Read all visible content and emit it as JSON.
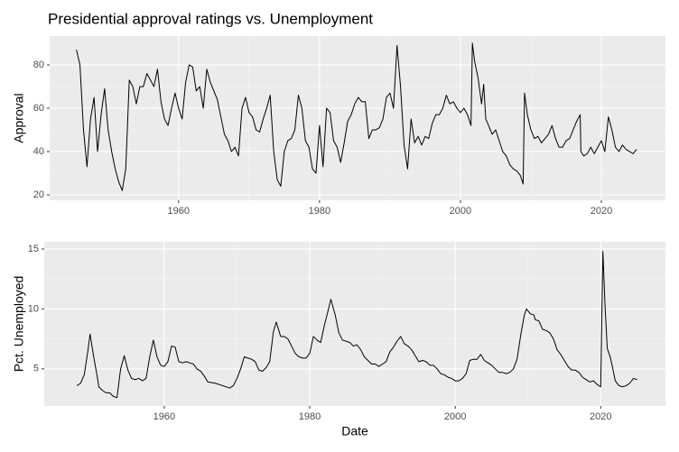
{
  "chart_data": [
    {
      "type": "line",
      "title": "Presidential approval ratings vs. Unemployment",
      "ylabel": "Approval",
      "color": "#000000",
      "grid": true,
      "x": [
        1945.5,
        1946,
        1946.5,
        1947,
        1947.5,
        1948,
        1948.5,
        1949,
        1949.5,
        1950,
        1950.5,
        1951,
        1951.5,
        1952,
        1952.5,
        1953,
        1953.5,
        1954,
        1954.5,
        1955,
        1955.5,
        1956,
        1956.5,
        1957,
        1957.5,
        1958,
        1958.5,
        1959,
        1959.5,
        1960,
        1960.5,
        1961,
        1961.5,
        1962,
        1962.5,
        1963,
        1963.5,
        1964,
        1964.5,
        1965,
        1965.5,
        1966,
        1966.5,
        1967,
        1967.5,
        1968,
        1968.5,
        1969,
        1969.5,
        1970,
        1970.5,
        1971,
        1971.5,
        1972,
        1972.5,
        1973,
        1973.5,
        1974,
        1974.5,
        1975,
        1975.5,
        1976,
        1976.5,
        1977,
        1977.5,
        1978,
        1978.5,
        1979,
        1979.5,
        1980,
        1980.5,
        1981,
        1981.5,
        1982,
        1982.5,
        1983,
        1983.5,
        1984,
        1984.5,
        1985,
        1985.5,
        1986,
        1986.5,
        1987,
        1987.5,
        1988,
        1988.5,
        1989,
        1989.5,
        1990,
        1990.5,
        1991,
        1991.5,
        1992,
        1992.5,
        1993,
        1993.5,
        1994,
        1994.5,
        1995,
        1995.5,
        1996,
        1996.5,
        1997,
        1997.5,
        1998,
        1998.5,
        1999,
        1999.5,
        2000,
        2000.5,
        2001,
        2001.5,
        2001.7,
        2002,
        2002.5,
        2003,
        2003.3,
        2003.6,
        2004,
        2004.5,
        2005,
        2005.5,
        2006,
        2006.5,
        2007,
        2007.5,
        2008,
        2008.5,
        2008.9,
        2009.1,
        2009.5,
        2010,
        2010.5,
        2011,
        2011.5,
        2012,
        2012.5,
        2013,
        2013.5,
        2014,
        2014.5,
        2015,
        2015.5,
        2016,
        2016.5,
        2017,
        2017.1,
        2017.5,
        2018,
        2018.5,
        2019,
        2019.5,
        2020,
        2020.5,
        2021,
        2021.5,
        2022,
        2022.5,
        2023,
        2023.5,
        2024,
        2024.5,
        2025
      ],
      "values": [
        87,
        80,
        50,
        33,
        55,
        65,
        40,
        57,
        69,
        50,
        40,
        32,
        26,
        22,
        32,
        73,
        70,
        62,
        70,
        70,
        76,
        73,
        70,
        78,
        63,
        55,
        52,
        60,
        67,
        60,
        55,
        72,
        80,
        79,
        68,
        70,
        60,
        78,
        72,
        68,
        64,
        56,
        48,
        45,
        40,
        42,
        38,
        60,
        65,
        58,
        56,
        50,
        49,
        55,
        60,
        66,
        40,
        27,
        24,
        40,
        45,
        46,
        50,
        66,
        60,
        45,
        42,
        32,
        30,
        52,
        33,
        60,
        58,
        45,
        42,
        35,
        44,
        54,
        57,
        62,
        65,
        63,
        63,
        46,
        50,
        50,
        51,
        55,
        65,
        67,
        60,
        89,
        70,
        43,
        32,
        55,
        44,
        47,
        43,
        47,
        46,
        53,
        57,
        57,
        60,
        66,
        62,
        63,
        60,
        58,
        60,
        57,
        52,
        90,
        82,
        74,
        62,
        71,
        55,
        52,
        48,
        50,
        45,
        40,
        38,
        34,
        32,
        31,
        29,
        25,
        67,
        57,
        50,
        46,
        47,
        44,
        46,
        48,
        52,
        46,
        42,
        42,
        45,
        46,
        50,
        54,
        57,
        40,
        38,
        39,
        42,
        39,
        42,
        45,
        40,
        56,
        50,
        42,
        40,
        43,
        41,
        40,
        39,
        41
      ],
      "xlim": [
        1941.7,
        2029.1
      ],
      "ylim": [
        17.5,
        93.3
      ],
      "xticks": [
        1960,
        1980,
        2000,
        2020
      ],
      "yticks": [
        20,
        40,
        60,
        80
      ]
    },
    {
      "type": "line",
      "ylabel": "Pct. Unemployed",
      "xlabel": "Date",
      "color": "#000000",
      "grid": true,
      "x": [
        1948,
        1948.5,
        1949,
        1949.5,
        1949.8,
        1950.3,
        1950.8,
        1951,
        1951.5,
        1952,
        1952.5,
        1953,
        1953.5,
        1954,
        1954.5,
        1955,
        1955.5,
        1956,
        1956.5,
        1957,
        1957.5,
        1958,
        1958.5,
        1959,
        1959.5,
        1960,
        1960.5,
        1961,
        1961.5,
        1962,
        1962.5,
        1963,
        1963.5,
        1964,
        1964.5,
        1965,
        1965.5,
        1966,
        1967,
        1968,
        1969,
        1969.5,
        1970,
        1970.5,
        1971,
        1971.5,
        1972,
        1972.5,
        1973,
        1973.5,
        1974,
        1974.5,
        1975,
        1975.4,
        1976,
        1976.5,
        1977,
        1977.5,
        1978,
        1978.5,
        1979,
        1979.5,
        1980,
        1980.5,
        1981,
        1981.5,
        1982,
        1982.5,
        1982.9,
        1983.5,
        1984,
        1984.5,
        1985,
        1985.5,
        1986,
        1986.5,
        1987,
        1987.5,
        1988,
        1988.5,
        1989,
        1989.5,
        1990,
        1990.5,
        1991,
        1991.5,
        1992,
        1992.5,
        1993,
        1993.5,
        1994,
        1994.5,
        1995,
        1995.5,
        1996,
        1996.5,
        1997,
        1997.5,
        1998,
        1998.5,
        1999,
        1999.5,
        2000,
        2000.5,
        2001,
        2001.5,
        2002,
        2002.5,
        2003,
        2003.5,
        2004,
        2004.5,
        2005,
        2005.5,
        2006,
        2006.5,
        2007,
        2007.5,
        2008,
        2008.5,
        2009,
        2009.5,
        2009.8,
        2010.3,
        2010.8,
        2011,
        2011.5,
        2012,
        2012.5,
        2013,
        2013.5,
        2014,
        2014.5,
        2015,
        2015.5,
        2016,
        2016.5,
        2017,
        2017.5,
        2018,
        2018.5,
        2019,
        2019.5,
        2020,
        2020.3,
        2020.6,
        2020.9,
        2021.3,
        2021.6,
        2022,
        2022.5,
        2023,
        2023.5,
        2024,
        2024.5,
        2025
      ],
      "values": [
        3.6,
        3.8,
        4.5,
        6.5,
        7.9,
        6.0,
        4.3,
        3.5,
        3.2,
        3.0,
        3.0,
        2.7,
        2.6,
        5.0,
        6.1,
        4.9,
        4.2,
        4.1,
        4.2,
        4.0,
        4.2,
        6.0,
        7.4,
        6.0,
        5.3,
        5.2,
        5.6,
        6.9,
        6.8,
        5.6,
        5.5,
        5.6,
        5.5,
        5.4,
        5.0,
        4.8,
        4.4,
        3.9,
        3.8,
        3.6,
        3.4,
        3.6,
        4.2,
        5.0,
        6.0,
        5.9,
        5.8,
        5.6,
        4.9,
        4.8,
        5.1,
        5.6,
        8.1,
        8.9,
        7.7,
        7.7,
        7.5,
        6.9,
        6.3,
        6.0,
        5.9,
        5.9,
        6.3,
        7.7,
        7.4,
        7.2,
        8.6,
        9.8,
        10.8,
        9.5,
        8.0,
        7.4,
        7.3,
        7.2,
        6.9,
        7.0,
        6.6,
        6.0,
        5.7,
        5.4,
        5.4,
        5.2,
        5.4,
        5.6,
        6.4,
        6.8,
        7.3,
        7.7,
        7.1,
        6.9,
        6.6,
        6.1,
        5.6,
        5.7,
        5.6,
        5.3,
        5.3,
        5.0,
        4.6,
        4.5,
        4.3,
        4.2,
        4.0,
        4.0,
        4.2,
        4.6,
        5.7,
        5.8,
        5.8,
        6.2,
        5.7,
        5.5,
        5.3,
        5.0,
        4.7,
        4.7,
        4.6,
        4.7,
        5.0,
        5.8,
        7.8,
        9.5,
        10.0,
        9.6,
        9.5,
        9.1,
        9.0,
        8.3,
        8.2,
        8.0,
        7.5,
        6.6,
        6.2,
        5.7,
        5.2,
        4.9,
        4.9,
        4.7,
        4.3,
        4.1,
        3.9,
        4.0,
        3.7,
        3.5,
        14.8,
        10.2,
        6.7,
        6.0,
        5.2,
        4.0,
        3.6,
        3.5,
        3.6,
        3.8,
        4.2,
        4.1
      ],
      "xlim": [
        1943.5,
        2028.9
      ],
      "ylim": [
        1.9,
        15.6
      ],
      "xticks": [
        1960,
        1980,
        2000,
        2020
      ],
      "yticks": [
        5,
        10,
        15
      ]
    }
  ]
}
